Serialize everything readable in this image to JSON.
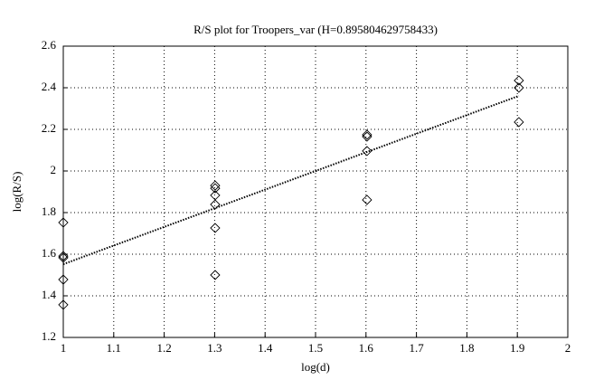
{
  "chart_data": {
    "type": "scatter",
    "title": "R/S plot for Troopers_var (H=0.895804629758433)",
    "xlabel": "log(d)",
    "ylabel": "log(R/S)",
    "xlim": [
      1,
      2
    ],
    "ylim": [
      1.2,
      2.6
    ],
    "xticks": [
      1,
      1.1,
      1.2,
      1.3,
      1.4,
      1.5,
      1.6,
      1.7,
      1.8,
      1.9,
      2
    ],
    "yticks": [
      1.2,
      1.4,
      1.6,
      1.8,
      2,
      2.2,
      2.4,
      2.6
    ],
    "grid": true,
    "series": [
      {
        "type": "scatter",
        "marker": "diamond",
        "color": "#000000",
        "x": [
          1,
          1,
          1,
          1,
          1,
          1.301,
          1.301,
          1.301,
          1.301,
          1.301,
          1.301,
          1.602,
          1.602,
          1.602,
          1.602,
          1.903,
          1.903,
          1.903
        ],
        "values": [
          1.752,
          1.591,
          1.583,
          1.478,
          1.357,
          1.93,
          1.917,
          1.883,
          1.839,
          1.726,
          1.5,
          2.174,
          2.165,
          2.096,
          1.861,
          2.435,
          2.4,
          2.235
        ]
      },
      {
        "type": "line",
        "style": "dotted",
        "color": "#000000",
        "x": [
          1,
          1.903
        ],
        "values": [
          1.552,
          2.361
        ]
      }
    ]
  }
}
